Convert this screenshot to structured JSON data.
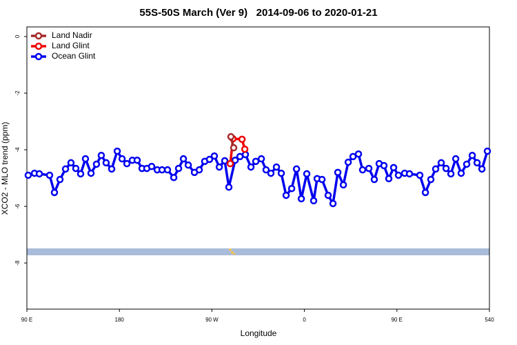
{
  "chart_data": {
    "type": "line",
    "title": "55S-50S March (Ver 9)   2014-09-06 to 2020-01-21",
    "xlabel": "Longitude",
    "ylabel": "XCO2 - MLO trend (ppm)",
    "xlim": [
      90,
      540
    ],
    "ylim": [
      -9.63,
      0.34
    ],
    "xticks": [
      {
        "value": 90,
        "label": "90 E"
      },
      180,
      {
        "value": 270,
        "label": "90 W"
      },
      {
        "value": 360,
        "label": "0"
      },
      {
        "value": 450,
        "label": "90 E"
      },
      540
    ],
    "yticks": [
      0,
      -2,
      -4,
      -6,
      -8
    ],
    "legend": "top-left",
    "series": [
      {
        "name": "Land Nadir",
        "color": "#a52a2a",
        "x": [
          288.5,
          291.2
        ],
        "values": [
          -3.54,
          -3.93
        ]
      },
      {
        "name": "Land Glint",
        "color": "#ee0000",
        "x": [
          287.9,
          290.5,
          299.3,
          302.0
        ],
        "values": [
          -4.49,
          -3.61,
          -3.63,
          -3.98
        ]
      },
      {
        "name": "Ocean Glint",
        "color": "#0000ee",
        "x": [
          91.3,
          97.4,
          102.1,
          112.1,
          116.8,
          122.2,
          127.6,
          132.9,
          137.6,
          142.3,
          147.0,
          152.4,
          157.7,
          162.4,
          167.1,
          172.5,
          177.9,
          182.6,
          187.3,
          192.6,
          197.3,
          202.0,
          206.7,
          211.4,
          216.8,
          221.5,
          226.8,
          232.9,
          237.6,
          242.3,
          247.0,
          253.0,
          257.7,
          263.0,
          267.7,
          272.4,
          277.2,
          282.5,
          286.5,
          292.6,
          297.3,
          302.6,
          308.0,
          312.7,
          318.1,
          322.7,
          327.4,
          332.8,
          337.5,
          342.2,
          347.6,
          352.3,
          357.0,
          362.3,
          369.0,
          372.4,
          377.1,
          383.1,
          387.8,
          392.5,
          397.9,
          402.6,
          407.3,
          412.6,
          416.6,
          422.7,
          428.0,
          432.7,
          437.4,
          442.1,
          446.8,
          451.5,
          457.5,
          462.2,
          472.3,
          477.7,
          483.0,
          487.7,
          493.1,
          497.8,
          502.5,
          507.2,
          512.5,
          517.9,
          523.3,
          528.0,
          532.7,
          538.0
        ],
        "values": [
          -4.9,
          -4.83,
          -4.85,
          -4.9,
          -5.51,
          -5.05,
          -4.68,
          -4.46,
          -4.66,
          -4.85,
          -4.32,
          -4.83,
          -4.51,
          -4.2,
          -4.46,
          -4.68,
          -4.05,
          -4.32,
          -4.49,
          -4.37,
          -4.37,
          -4.66,
          -4.66,
          -4.59,
          -4.71,
          -4.71,
          -4.71,
          -4.98,
          -4.66,
          -4.32,
          -4.54,
          -4.8,
          -4.71,
          -4.41,
          -4.34,
          -4.22,
          -4.61,
          -4.39,
          -5.32,
          -4.37,
          -4.24,
          -4.17,
          -4.61,
          -4.41,
          -4.32,
          -4.71,
          -4.83,
          -4.61,
          -4.83,
          -5.61,
          -5.37,
          -4.68,
          -5.73,
          -4.85,
          -5.8,
          -5.02,
          -5.05,
          -5.61,
          -5.9,
          -4.8,
          -5.24,
          -4.44,
          -4.24,
          -4.15,
          -4.71,
          -4.66,
          -5.05,
          -4.49,
          -4.56,
          -5.02,
          -4.63,
          -4.9,
          -4.83,
          -4.85,
          -4.9,
          -5.51,
          -5.05,
          -4.68,
          -4.46,
          -4.66,
          -4.85,
          -4.32,
          -4.83,
          -4.51,
          -4.2,
          -4.46,
          -4.68,
          -4.05
        ]
      }
    ]
  }
}
